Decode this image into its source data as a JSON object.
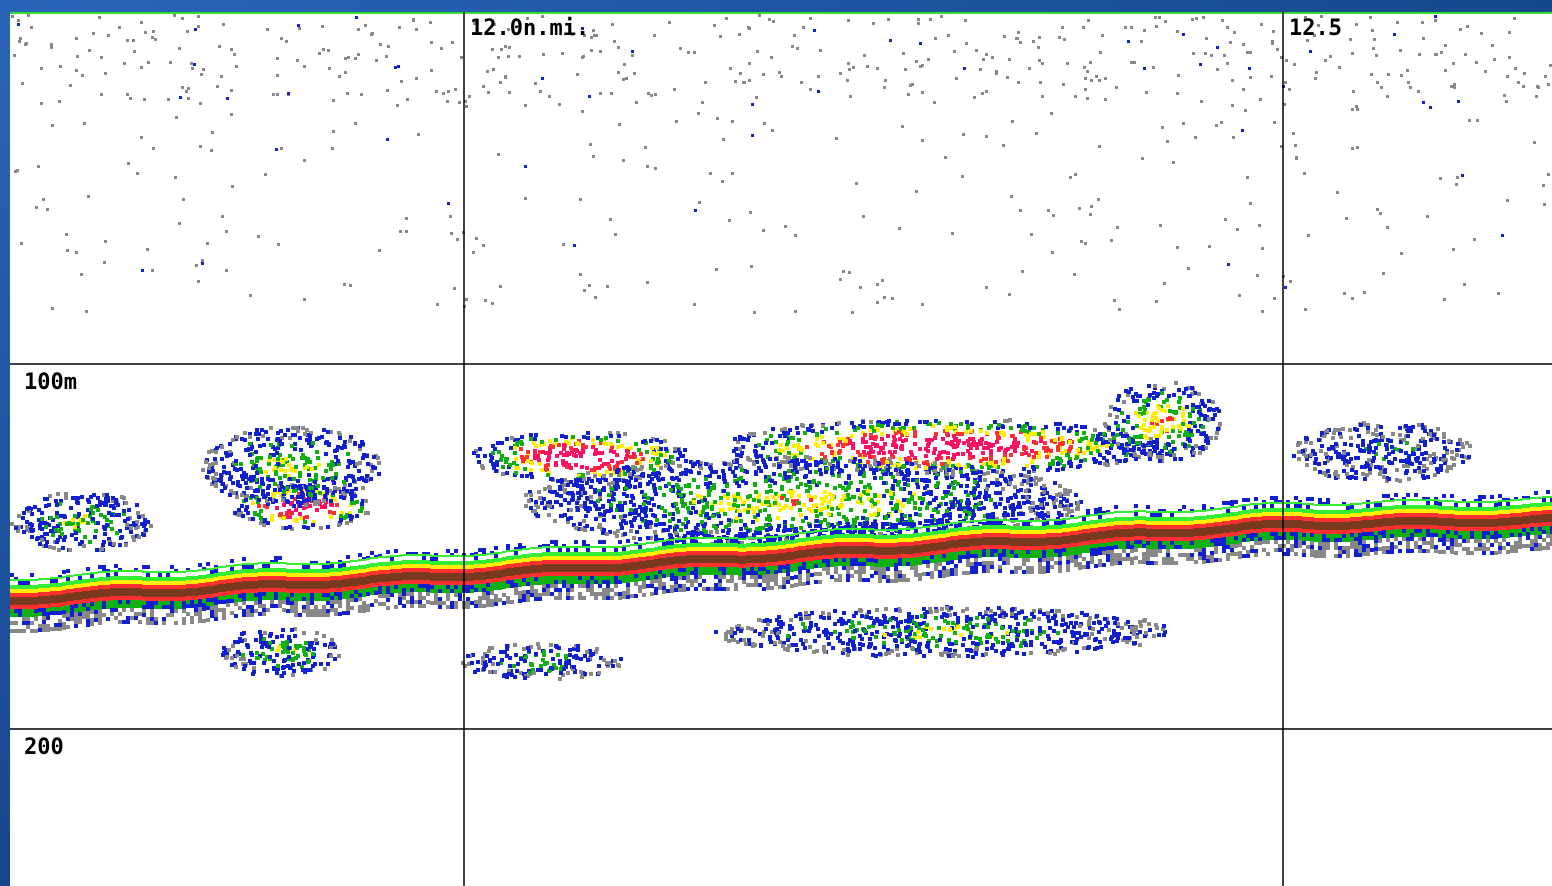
{
  "grid": {
    "distance_labels": [
      "12.0n.mi.",
      "12.5"
    ],
    "depth_labels": [
      "100m",
      "200"
    ]
  }
}
